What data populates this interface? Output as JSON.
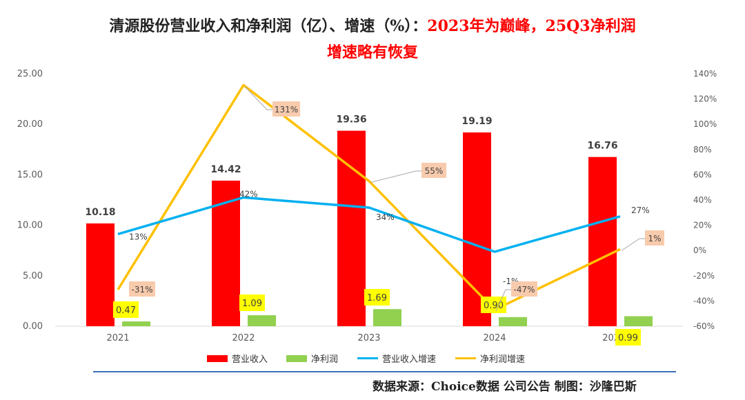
{
  "title": {
    "line1_black": "清源股份营业收入和净利润（亿）、增速（%）：",
    "line1_red": "2023年为巅峰，25Q3净利润",
    "line2_red": "增速略有恢复"
  },
  "source": "数据来源：Choice数据  公司公告  制图：沙隆巴斯",
  "colors": {
    "revenue": "#ff0000",
    "net_profit": "#92d050",
    "revenue_growth": "#00b0f0",
    "profit_growth": "#ffc000",
    "profit_label_bg": "#ffff00",
    "growth_label_bg": "#f8cbad"
  },
  "chart_data": {
    "type": "bar",
    "categories": [
      "2021",
      "2022",
      "2023",
      "2024",
      "2025Q3"
    ],
    "left_axis": {
      "min": 0,
      "max": 25,
      "ticks": [
        "0.00",
        "5.00",
        "10.00",
        "15.00",
        "20.00",
        "25.00"
      ]
    },
    "right_axis": {
      "min": -60,
      "max": 140,
      "ticks": [
        "-60%",
        "-40%",
        "-20%",
        "0%",
        "20%",
        "40%",
        "60%",
        "80%",
        "100%",
        "120%",
        "140%"
      ]
    },
    "series": [
      {
        "name": "营业收入",
        "kind": "bar",
        "axis": "left",
        "values": [
          10.18,
          14.42,
          19.36,
          19.19,
          16.76
        ],
        "labels": [
          "10.18",
          "14.42",
          "19.36",
          "19.19",
          "16.76"
        ]
      },
      {
        "name": "净利润",
        "kind": "bar",
        "axis": "left",
        "values": [
          0.47,
          1.09,
          1.69,
          0.9,
          0.99
        ],
        "labels": [
          "0.47",
          "1.09",
          "1.69",
          "0.90",
          "0.99"
        ]
      },
      {
        "name": "营业收入增速",
        "kind": "line",
        "axis": "right",
        "values": [
          13,
          42,
          34,
          -1,
          27
        ],
        "labels": [
          "13%",
          "42%",
          "34%",
          "-1%",
          "27%"
        ]
      },
      {
        "name": "净利润增速",
        "kind": "line",
        "axis": "right",
        "values": [
          -31,
          131,
          55,
          -47,
          1
        ],
        "labels": [
          "-31%",
          "131%",
          "55%",
          "-47%",
          "1%"
        ]
      }
    ],
    "grid": false,
    "legend": "bottom"
  }
}
